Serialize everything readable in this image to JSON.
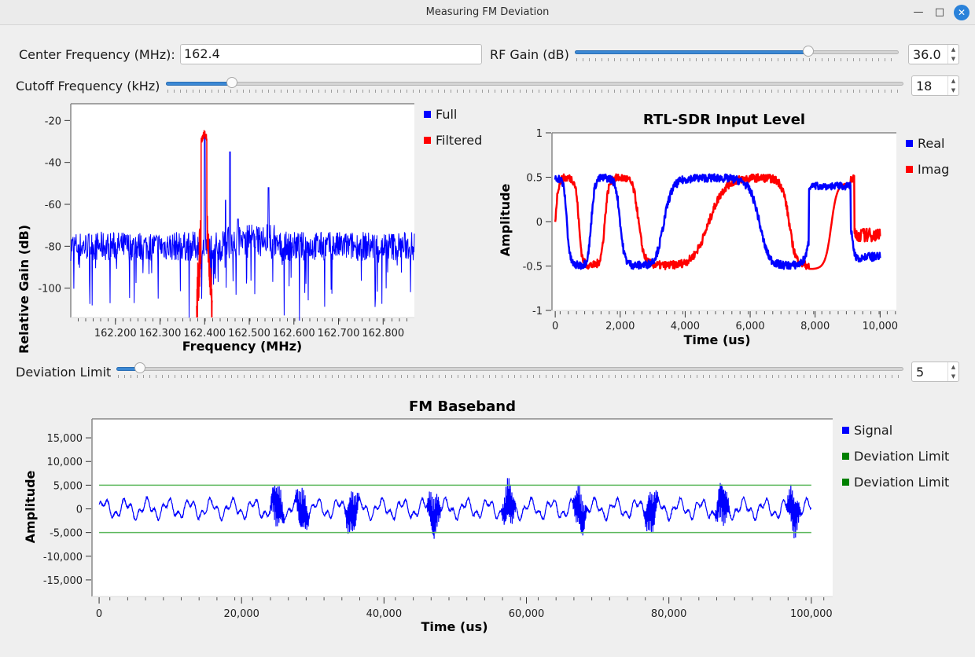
{
  "window": {
    "title": "Measuring FM Deviation",
    "minimize_glyph": "—",
    "maximize_glyph": "□",
    "close_glyph": "✕"
  },
  "controls": {
    "center_freq": {
      "label": "Center Frequency (MHz):",
      "value": "162.4"
    },
    "rf_gain": {
      "label": "RF Gain (dB)",
      "value": "36.0",
      "level": 0.72
    },
    "cutoff": {
      "label": "Cutoff Frequency (kHz)",
      "value": "18",
      "level": 0.09
    },
    "deviation": {
      "label": "Deviation Limit",
      "value": "5",
      "level": 0.03
    },
    "spin_up": "▲",
    "spin_down": "▼"
  },
  "chart_data": [
    {
      "type": "line",
      "title": "",
      "xlabel": "Frequency (MHz)",
      "ylabel": "Relative Gain (dB)",
      "xlim": [
        162.1,
        162.87
      ],
      "ylim": [
        -114,
        -12
      ],
      "xticks": [
        "162.200",
        "162.300",
        "162.400",
        "162.500",
        "162.600",
        "162.700",
        "162.800"
      ],
      "yticks": [
        "-20",
        "-40",
        "-60",
        "-80",
        "-100"
      ],
      "grid": false,
      "legend_position": "right",
      "series": [
        {
          "name": "Full",
          "color": "#0000ff",
          "noise_floor": -80,
          "peaks": [
            [
              162.4,
              -27
            ],
            [
              162.447,
              -58
            ],
            [
              162.457,
              -35
            ],
            [
              162.475,
              -67
            ],
            [
              162.5,
              -70
            ],
            [
              162.543,
              -52
            ]
          ]
        },
        {
          "name": "Filtered",
          "color": "#ff0000",
          "peak": [
            162.4,
            -24
          ],
          "extent": [
            162.382,
            162.417
          ]
        }
      ]
    },
    {
      "type": "line",
      "title": "RTL-SDR Input Level",
      "xlabel": "Time (us)",
      "ylabel": "Amplitude",
      "xlim": [
        -100,
        10500
      ],
      "ylim": [
        -1,
        1
      ],
      "xticks": [
        "0",
        "2,000",
        "4,000",
        "6,000",
        "8,000",
        "10,000"
      ],
      "yticks": [
        "1",
        "0.5",
        "0",
        "-0.5",
        "-1"
      ],
      "grid": false,
      "legend_position": "right",
      "series": [
        {
          "name": "Real",
          "color": "#0000ff"
        },
        {
          "name": "Imag",
          "color": "#ff0000"
        }
      ]
    },
    {
      "type": "line",
      "title": "FM Baseband",
      "xlabel": "Time (us)",
      "ylabel": "Amplitude",
      "xlim": [
        -1000,
        103000
      ],
      "ylim": [
        -18500,
        19000
      ],
      "xticks": [
        "0",
        "20,000",
        "40,000",
        "60,000",
        "80,000",
        "100,000"
      ],
      "yticks": [
        "15,000",
        "10,000",
        "5,000",
        "0",
        "-5,000",
        "-10,000",
        "-15,000"
      ],
      "grid": false,
      "legend_position": "right",
      "series": [
        {
          "name": "Signal",
          "color": "#0000ff",
          "bursts_at": [
            25000,
            28500,
            35500,
            47000,
            57500,
            67500,
            77500,
            87500,
            97500
          ]
        },
        {
          "name": "Deviation Limit",
          "color": "#008000",
          "value": 5000
        },
        {
          "name": "Deviation Limit",
          "color": "#008000",
          "value": -5000
        }
      ]
    }
  ]
}
